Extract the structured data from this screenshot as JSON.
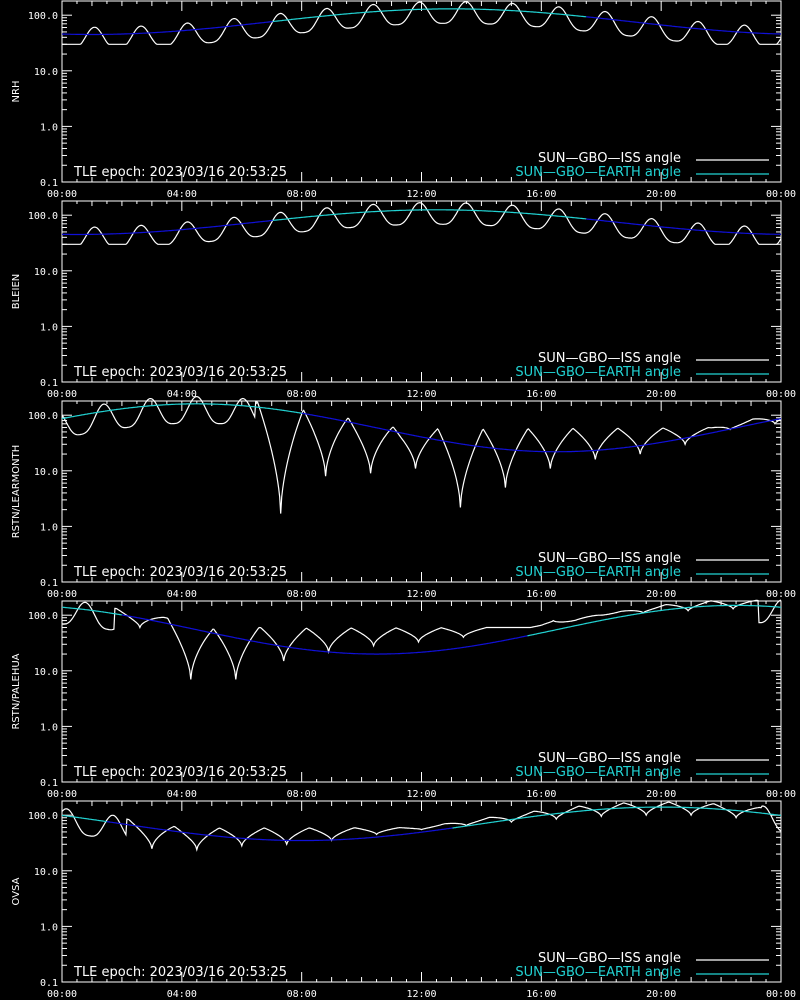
{
  "colors": {
    "background": "#000000",
    "axes": "#ffffff",
    "iss_visible": "#ffffff",
    "iss_hidden": "#8c8c8c",
    "earth_visible": "#22d3d3",
    "earth_hidden": "#1010d8"
  },
  "legend": {
    "iss": "SUN—GBO—ISS angle",
    "earth": "SUN—GBO—EARTH angle"
  },
  "epoch_text": "TLE epoch: 2023/03/16 20:53:25",
  "chart_data": [
    {
      "type": "line",
      "ylabel": "NRH",
      "yscale": "log",
      "ylim": [
        0.1,
        180
      ],
      "y_ticks": [
        "0.1",
        "1.0",
        "10.0",
        "100.0"
      ],
      "x_ticks": [
        "00:00",
        "04:00",
        "08:00",
        "12:00",
        "16:00",
        "20:00",
        "00:00"
      ],
      "xlim_hours": [
        0,
        24
      ],
      "earth": {
        "min": 45,
        "max": 130,
        "min_hour": 0.5,
        "peak_hour": 13,
        "visible_after": 7,
        "visible_before": 17.5
      },
      "iss": {
        "period_hours": 1.55,
        "phase": 0.3,
        "depth": 0.45,
        "min_floor": 30
      },
      "series": [
        {
          "name": "SUN—GBO—ISS angle"
        },
        {
          "name": "SUN—GBO—EARTH angle"
        }
      ]
    },
    {
      "type": "line",
      "ylabel": "BLEIEN",
      "yscale": "log",
      "ylim": [
        0.1,
        180
      ],
      "y_ticks": [
        "0.1",
        "1.0",
        "10.0",
        "100.0"
      ],
      "x_ticks": [
        "00:00",
        "04:00",
        "08:00",
        "12:00",
        "16:00",
        "20:00",
        "00:00"
      ],
      "xlim_hours": [
        0,
        24
      ],
      "earth": {
        "min": 45,
        "max": 125,
        "min_hour": 0.5,
        "peak_hour": 12.5,
        "visible_after": 7,
        "visible_before": 17.5
      },
      "iss": {
        "period_hours": 1.55,
        "phase": 0.3,
        "depth": 0.45,
        "min_floor": 30
      },
      "series": [
        {
          "name": "SUN—GBO—ISS angle"
        },
        {
          "name": "SUN—GBO—EARTH angle"
        }
      ]
    },
    {
      "type": "line",
      "ylabel": "RSTN/LEARMONTH",
      "yscale": "log",
      "ylim": [
        0.1,
        180
      ],
      "y_ticks": [
        "0.1",
        "1.0",
        "10.0",
        "100.0"
      ],
      "x_ticks": [
        "00:00",
        "04:00",
        "08:00",
        "12:00",
        "16:00",
        "20:00",
        "00:00"
      ],
      "xlim_hours": [
        0,
        24
      ],
      "earth": {
        "min": 22,
        "max": 160,
        "min_hour": 16.5,
        "peak_hour": 4.5,
        "visible_after": -1,
        "visible_before": 8
      },
      "iss": {
        "period_hours": 1.55,
        "phase": 0.1,
        "depth": 0.55,
        "min_floor": 1.7,
        "deep_dips": [
          [
            7.3,
            1.7
          ],
          [
            8.8,
            8
          ],
          [
            10.3,
            9
          ],
          [
            11.8,
            11
          ],
          [
            13.3,
            2.2
          ],
          [
            14.8,
            5
          ],
          [
            16.3,
            11
          ],
          [
            17.8,
            16
          ],
          [
            19.3,
            20
          ],
          [
            20.8,
            30
          ],
          [
            22.3,
            55
          ],
          [
            23.8,
            70
          ]
        ]
      },
      "series": [
        {
          "name": "SUN—GBO—ISS angle"
        },
        {
          "name": "SUN—GBO—EARTH angle"
        }
      ]
    },
    {
      "type": "line",
      "ylabel": "RSTN/PALEHUA",
      "yscale": "log",
      "ylim": [
        0.1,
        180
      ],
      "y_ticks": [
        "0.1",
        "1.0",
        "10.0",
        "100.0"
      ],
      "x_ticks": [
        "00:00",
        "04:00",
        "08:00",
        "12:00",
        "16:00",
        "20:00",
        "00:00"
      ],
      "xlim_hours": [
        0,
        24
      ],
      "earth": {
        "min": 20,
        "max": 150,
        "min_hour": 10.7,
        "peak_hour": 22.5,
        "visible_after": 15.5,
        "visible_before": 2
      },
      "iss": {
        "period_hours": 1.55,
        "phase": 0.5,
        "depth": 0.5,
        "min_floor": 7,
        "deep_dips": [
          [
            2.6,
            60
          ],
          [
            4.3,
            7
          ],
          [
            5.8,
            7
          ],
          [
            7.4,
            15
          ],
          [
            8.9,
            22
          ],
          [
            10.4,
            28
          ],
          [
            11.9,
            33
          ],
          [
            13.4,
            40
          ],
          [
            14.9,
            60
          ],
          [
            16.4,
            80
          ],
          [
            17.9,
            100
          ],
          [
            19.4,
            110
          ],
          [
            20.9,
            120
          ],
          [
            22.4,
            130
          ]
        ]
      },
      "series": [
        {
          "name": "SUN—GBO—ISS angle"
        },
        {
          "name": "SUN—GBO—EARTH angle"
        }
      ]
    },
    {
      "type": "line",
      "ylabel": "OVSA",
      "yscale": "log",
      "ylim": [
        0.1,
        180
      ],
      "y_ticks": [
        "0.1",
        "1.0",
        "10.0",
        "100.0"
      ],
      "x_ticks": [
        "00:00",
        "04:00",
        "08:00",
        "12:00",
        "16:00",
        "20:00",
        "00:00"
      ],
      "xlim_hours": [
        0,
        24
      ],
      "earth": {
        "min": 35,
        "max": 140,
        "min_hour": 8,
        "peak_hour": 20,
        "visible_after": 13,
        "visible_before": 1.5
      },
      "iss": {
        "period_hours": 1.55,
        "phase": 0.9,
        "depth": 0.5,
        "min_floor": 25,
        "deep_dips": [
          [
            3.0,
            25
          ],
          [
            4.5,
            24
          ],
          [
            6.0,
            28
          ],
          [
            7.5,
            30
          ],
          [
            9.0,
            35
          ],
          [
            10.5,
            45
          ],
          [
            12.0,
            55
          ],
          [
            13.5,
            65
          ],
          [
            15.0,
            75
          ],
          [
            16.5,
            85
          ],
          [
            18.0,
            95
          ],
          [
            19.5,
            100
          ],
          [
            21.0,
            100
          ],
          [
            22.5,
            90
          ]
        ]
      },
      "series": [
        {
          "name": "SUN—GBO—ISS angle"
        },
        {
          "name": "SUN—GBO—EARTH angle"
        }
      ]
    }
  ]
}
